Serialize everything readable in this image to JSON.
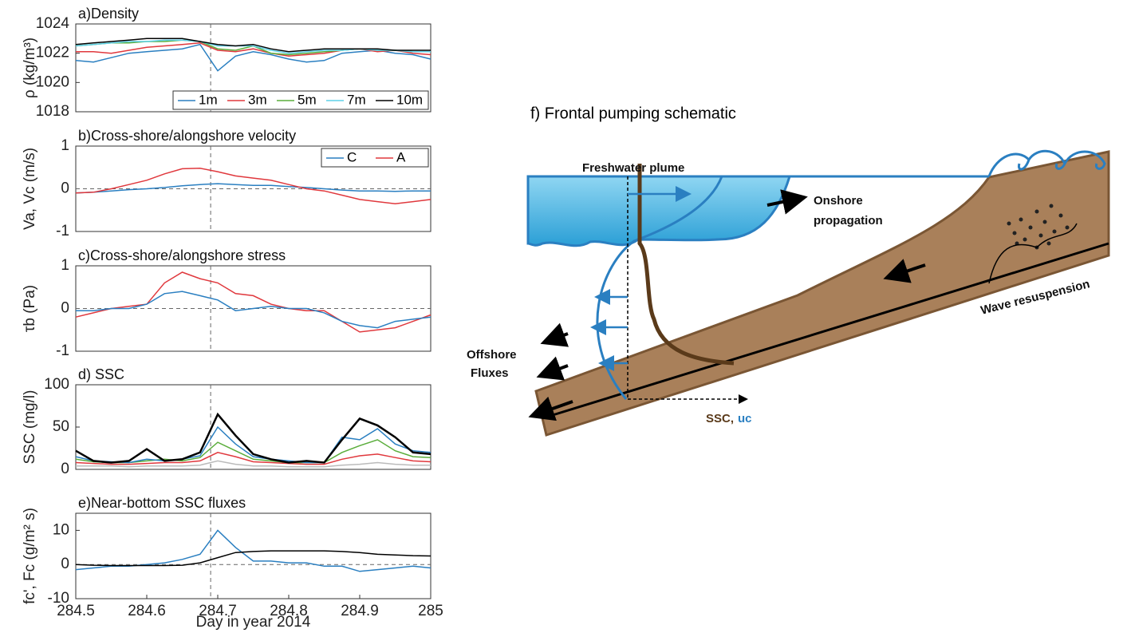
{
  "chart_data": [
    {
      "type": "line",
      "title": "a)Density",
      "ylabel": "ρ (kg/m³)",
      "xlim": [
        284.5,
        285
      ],
      "ylim": [
        1018,
        1024
      ],
      "yticks": [
        1018,
        1020,
        1022,
        1024
      ],
      "vline": 284.69,
      "legend": "lower right",
      "x": [
        284.5,
        284.525,
        284.55,
        284.575,
        284.6,
        284.625,
        284.65,
        284.675,
        284.7,
        284.725,
        284.75,
        284.775,
        284.8,
        284.825,
        284.85,
        284.875,
        284.9,
        284.925,
        284.95,
        284.975,
        285
      ],
      "series": [
        {
          "name": "1m",
          "color": "#2a7fc1",
          "values": [
            1021.5,
            1021.4,
            1021.7,
            1022,
            1022.1,
            1022.2,
            1022.3,
            1022.6,
            1020.8,
            1021.8,
            1022.1,
            1021.9,
            1021.6,
            1021.4,
            1021.5,
            1022,
            1022.1,
            1022.2,
            1022,
            1021.9,
            1021.6
          ]
        },
        {
          "name": "3m",
          "color": "#e0383d",
          "values": [
            1022.1,
            1022.1,
            1022,
            1022.2,
            1022.4,
            1022.5,
            1022.6,
            1022.7,
            1022.2,
            1022.1,
            1022.3,
            1022,
            1021.8,
            1021.9,
            1022,
            1022.2,
            1022.3,
            1022.1,
            1022.2,
            1022,
            1021.9
          ]
        },
        {
          "name": "5m",
          "color": "#5aad3b",
          "values": [
            1022.5,
            1022.6,
            1022.7,
            1022.7,
            1022.8,
            1022.8,
            1022.9,
            1022.8,
            1022.3,
            1022.2,
            1022.5,
            1022,
            1021.9,
            1022,
            1022.1,
            1022.2,
            1022.3,
            1022.2,
            1022.2,
            1022.1,
            1022.1
          ]
        },
        {
          "name": "7m",
          "color": "#5fd0e8",
          "values": [
            1022.5,
            1022.6,
            1022.7,
            1022.8,
            1022.8,
            1022.9,
            1022.9,
            1022.8,
            1022.5,
            1022.5,
            1022.5,
            1022.2,
            1022,
            1022.1,
            1022.2,
            1022.2,
            1022.3,
            1022.2,
            1022.2,
            1022.1,
            1022.1
          ]
        },
        {
          "name": "10m",
          "color": "#000000",
          "values": [
            1022.6,
            1022.7,
            1022.8,
            1022.9,
            1023,
            1023,
            1023,
            1022.8,
            1022.6,
            1022.5,
            1022.6,
            1022.3,
            1022.1,
            1022.2,
            1022.3,
            1022.3,
            1022.3,
            1022.3,
            1022.2,
            1022.2,
            1022.2
          ]
        }
      ]
    },
    {
      "type": "line",
      "title": "b)Cross-shore/alongshore velocity",
      "ylabel": "Va, Vc (m/s)",
      "xlim": [
        284.5,
        285
      ],
      "ylim": [
        -1,
        1
      ],
      "yticks": [
        -1,
        0,
        1
      ],
      "vline": 284.69,
      "hline": 0,
      "legend": "upper right",
      "x": [
        284.5,
        284.525,
        284.55,
        284.575,
        284.6,
        284.625,
        284.65,
        284.675,
        284.7,
        284.725,
        284.75,
        284.775,
        284.8,
        284.825,
        284.85,
        284.875,
        284.9,
        284.925,
        284.95,
        284.975,
        285
      ],
      "series": [
        {
          "name": "C",
          "color": "#2a7fc1",
          "values": [
            -0.1,
            -0.08,
            -0.05,
            -0.02,
            0,
            0.03,
            0.07,
            0.1,
            0.12,
            0.1,
            0.08,
            0.08,
            0.05,
            0.03,
            0,
            -0.03,
            -0.05,
            -0.05,
            -0.06,
            -0.05,
            -0.05
          ]
        },
        {
          "name": "A",
          "color": "#e0383d",
          "values": [
            -0.1,
            -0.08,
            0,
            0.1,
            0.2,
            0.35,
            0.47,
            0.48,
            0.4,
            0.3,
            0.25,
            0.2,
            0.1,
            0,
            -0.05,
            -0.15,
            -0.25,
            -0.3,
            -0.35,
            -0.3,
            -0.25
          ]
        }
      ]
    },
    {
      "type": "line",
      "title": "c)Cross-shore/alongshore stress",
      "ylabel": "τb (Pa)",
      "xlim": [
        284.5,
        285
      ],
      "ylim": [
        -1,
        1
      ],
      "yticks": [
        -1,
        0,
        1
      ],
      "vline": 284.69,
      "hline": 0,
      "x": [
        284.5,
        284.525,
        284.55,
        284.575,
        284.6,
        284.625,
        284.65,
        284.675,
        284.7,
        284.725,
        284.75,
        284.775,
        284.8,
        284.825,
        284.85,
        284.875,
        284.9,
        284.925,
        284.95,
        284.975,
        285
      ],
      "series": [
        {
          "color": "#e0383d",
          "values": [
            -0.2,
            -0.1,
            0,
            0.05,
            0.1,
            0.6,
            0.85,
            0.7,
            0.6,
            0.35,
            0.3,
            0.1,
            0,
            -0.05,
            -0.05,
            -0.3,
            -0.55,
            -0.5,
            -0.45,
            -0.3,
            -0.15
          ]
        },
        {
          "color": "#2a7fc1",
          "values": [
            -0.05,
            -0.05,
            0,
            0,
            0.1,
            0.35,
            0.4,
            0.3,
            0.2,
            -0.05,
            0,
            0.05,
            0,
            0,
            -0.1,
            -0.3,
            -0.4,
            -0.45,
            -0.3,
            -0.25,
            -0.2
          ]
        }
      ]
    },
    {
      "type": "line",
      "title": "d) SSC",
      "ylabel": "SSC (mg/l)",
      "xlim": [
        284.5,
        285
      ],
      "ylim": [
        0,
        100
      ],
      "yticks": [
        0,
        50,
        100
      ],
      "vline": 284.69,
      "x": [
        284.5,
        284.525,
        284.55,
        284.575,
        284.6,
        284.625,
        284.65,
        284.675,
        284.7,
        284.725,
        284.75,
        284.775,
        284.8,
        284.825,
        284.85,
        284.875,
        284.9,
        284.925,
        284.95,
        284.975,
        285
      ],
      "series": [
        {
          "color": "#bbbbbb",
          "values": [
            4,
            4,
            4,
            3,
            4,
            4,
            4,
            5,
            10,
            6,
            4,
            4,
            3,
            3,
            3,
            5,
            6,
            8,
            6,
            5,
            5
          ]
        },
        {
          "color": "#e0383d",
          "values": [
            8,
            7,
            6,
            6,
            7,
            8,
            8,
            10,
            20,
            15,
            9,
            8,
            7,
            6,
            6,
            12,
            16,
            18,
            14,
            10,
            9
          ]
        },
        {
          "color": "#5aad3b",
          "values": [
            12,
            9,
            8,
            8,
            10,
            12,
            10,
            14,
            32,
            22,
            12,
            10,
            8,
            8,
            8,
            20,
            28,
            35,
            22,
            15,
            14
          ]
        },
        {
          "color": "#2a7fc1",
          "values": [
            15,
            10,
            9,
            8,
            12,
            10,
            12,
            16,
            50,
            30,
            15,
            12,
            10,
            8,
            8,
            38,
            35,
            48,
            30,
            22,
            20
          ]
        },
        {
          "color": "#000000",
          "values": [
            22,
            10,
            8,
            10,
            24,
            10,
            12,
            20,
            65,
            40,
            18,
            12,
            8,
            10,
            8,
            35,
            60,
            52,
            38,
            20,
            18
          ]
        }
      ]
    },
    {
      "type": "line",
      "title": "e)Near-bottom SSC fluxes",
      "ylabel": "fc', Fc (g/m² s)",
      "xlabel": "Day in year 2014",
      "xlim": [
        284.5,
        285
      ],
      "ylim": [
        -10,
        15
      ],
      "yticks": [
        -10,
        0,
        10
      ],
      "xticks": [
        284.5,
        284.6,
        284.7,
        284.8,
        284.9,
        285
      ],
      "vline": 284.69,
      "hline": 0,
      "x": [
        284.5,
        284.525,
        284.55,
        284.575,
        284.6,
        284.625,
        284.65,
        284.675,
        284.7,
        284.725,
        284.75,
        284.775,
        284.8,
        284.825,
        284.85,
        284.875,
        284.9,
        284.925,
        284.95,
        284.975,
        285
      ],
      "series": [
        {
          "color": "#2a7fc1",
          "values": [
            -1.5,
            -1,
            -0.5,
            -0.5,
            0,
            0.5,
            1.5,
            3,
            10,
            5,
            1,
            1,
            0.5,
            0.5,
            -0.5,
            -0.5,
            -2,
            -1.5,
            -1,
            -0.5,
            -1
          ]
        },
        {
          "color": "#000000",
          "values": [
            0,
            -0.2,
            -0.3,
            -0.3,
            -0.3,
            -0.3,
            -0.2,
            0.5,
            2,
            3.5,
            3.8,
            4,
            4,
            4,
            4,
            3.8,
            3.5,
            3,
            2.8,
            2.6,
            2.5
          ]
        }
      ]
    }
  ],
  "schematic": {
    "title": "f) Frontal pumping schematic",
    "plume": "Freshwater plume",
    "onshore": [
      "Onshore",
      "propagation"
    ],
    "resuspension": "Wave resuspension",
    "offshore": [
      "Offshore",
      "Fluxes"
    ],
    "ssc": "SSC,",
    "uc": "uc"
  }
}
